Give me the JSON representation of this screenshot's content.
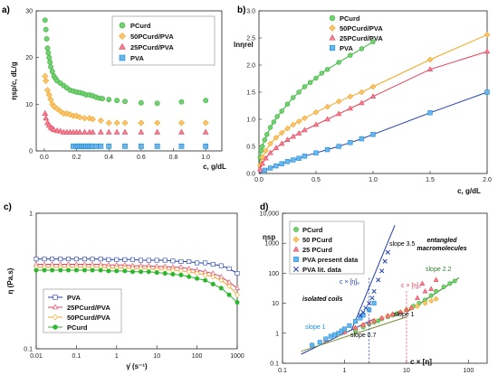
{
  "panels": {
    "a": {
      "label": "a)"
    },
    "b": {
      "label": "b)"
    },
    "c": {
      "label": "c)"
    },
    "d": {
      "label": "d)"
    }
  },
  "colors": {
    "PCurd": "#2db52d",
    "50PCurd/PVA": "#f5a623",
    "25PCurd/PVA": "#e8415a",
    "PVA": "#1a8fe0",
    "PVA_line": "#1f3fb0"
  },
  "chart_data": [
    {
      "id": "a",
      "type": "scatter",
      "xlabel": "c, g/dL",
      "ylabel": "ηsp/c, dL/g",
      "xlim": [
        -0.05,
        1.1
      ],
      "ylim": [
        0,
        30
      ],
      "xticks": [
        "0.0",
        "0.2",
        "0.4",
        "0.6",
        "0.8",
        "1.0"
      ],
      "yticks": [
        "0",
        "10",
        "20",
        "30"
      ],
      "legend_position": "top-right",
      "series": [
        {
          "name": "PCurd",
          "marker": "circle",
          "x": [
            0.005,
            0.01,
            0.015,
            0.02,
            0.025,
            0.03,
            0.035,
            0.04,
            0.05,
            0.06,
            0.07,
            0.08,
            0.1,
            0.12,
            0.14,
            0.16,
            0.18,
            0.2,
            0.22,
            0.24,
            0.26,
            0.28,
            0.3,
            0.32,
            0.34,
            0.36,
            0.4,
            0.45,
            0.5,
            0.6,
            0.7,
            0.85,
            1.0
          ],
          "y": [
            28,
            26,
            24,
            22,
            21,
            20,
            19,
            18,
            17,
            16,
            15.5,
            15,
            14.5,
            14,
            13.5,
            13,
            12.8,
            12.6,
            12.5,
            12.3,
            12,
            12,
            11.8,
            11.5,
            11.3,
            11.2,
            11,
            10.8,
            10.6,
            10.3,
            10.2,
            10.5,
            10.8
          ]
        },
        {
          "name": "50PCurd/PVA",
          "marker": "diamond",
          "x": [
            0.005,
            0.01,
            0.02,
            0.03,
            0.04,
            0.05,
            0.06,
            0.08,
            0.1,
            0.12,
            0.14,
            0.16,
            0.18,
            0.2,
            0.22,
            0.25,
            0.28,
            0.3,
            0.35,
            0.4,
            0.45,
            0.5,
            0.6,
            0.7,
            0.85,
            1.0
          ],
          "y": [
            16,
            15,
            13,
            12,
            11,
            10,
            9.5,
            9,
            8.5,
            8,
            8,
            7.8,
            7.5,
            7.5,
            7.2,
            7,
            7,
            6.8,
            6.5,
            6,
            6,
            6,
            6,
            6,
            6,
            6
          ]
        },
        {
          "name": "25PCurd/PVA",
          "marker": "triangle",
          "x": [
            0.005,
            0.01,
            0.02,
            0.03,
            0.04,
            0.05,
            0.06,
            0.08,
            0.1,
            0.12,
            0.14,
            0.16,
            0.18,
            0.2,
            0.22,
            0.25,
            0.28,
            0.3,
            0.35,
            0.4,
            0.45,
            0.5,
            0.6,
            0.7,
            0.85,
            1.0
          ],
          "y": [
            8,
            7,
            6,
            5.5,
            5,
            4.8,
            4.5,
            4.3,
            4.2,
            4,
            4,
            4,
            4,
            4,
            4,
            4,
            4,
            4,
            4,
            4,
            4,
            4,
            4,
            4,
            4,
            4
          ]
        },
        {
          "name": "PVA",
          "marker": "square",
          "x": [
            0.18,
            0.2,
            0.21,
            0.22,
            0.23,
            0.24,
            0.25,
            0.26,
            0.27,
            0.28,
            0.29,
            0.3,
            0.32,
            0.35,
            0.4,
            0.5,
            0.6,
            0.7,
            0.85,
            1.0
          ],
          "y": [
            1,
            1,
            1,
            1,
            1,
            1,
            1,
            1,
            1,
            1,
            1,
            1,
            1,
            1,
            1,
            1,
            1,
            1,
            1,
            1
          ]
        }
      ]
    },
    {
      "id": "b",
      "type": "scatter",
      "xlabel": "c, g/dL",
      "ylabel": "lnηrel",
      "xlim": [
        0,
        2.0
      ],
      "ylim": [
        0,
        3.0
      ],
      "xticks": [
        "0.0",
        "0.5",
        "1.0",
        "1.5",
        "2.0"
      ],
      "yticks": [
        "0.0",
        "0.5",
        "1.0",
        "1.5",
        "2.0",
        "2.5",
        "3.0"
      ],
      "legend_position": "top-center",
      "series": [
        {
          "name": "PCurd",
          "marker": "circle",
          "x": [
            0.01,
            0.02,
            0.03,
            0.05,
            0.07,
            0.1,
            0.13,
            0.16,
            0.2,
            0.25,
            0.3,
            0.35,
            0.4,
            0.45,
            0.5,
            0.55,
            0.6,
            0.7,
            0.8,
            0.9,
            1.0
          ],
          "y": [
            0.3,
            0.42,
            0.5,
            0.62,
            0.72,
            0.85,
            0.95,
            1.05,
            1.15,
            1.28,
            1.4,
            1.5,
            1.6,
            1.68,
            1.76,
            1.85,
            1.92,
            2.05,
            2.18,
            2.3,
            2.43
          ]
        },
        {
          "name": "50PCurd/PVA",
          "marker": "diamond",
          "x": [
            0.01,
            0.03,
            0.06,
            0.1,
            0.15,
            0.2,
            0.25,
            0.3,
            0.35,
            0.4,
            0.5,
            0.6,
            0.7,
            0.8,
            0.9,
            1.0,
            1.5,
            2.0
          ],
          "y": [
            0.15,
            0.3,
            0.42,
            0.55,
            0.66,
            0.75,
            0.83,
            0.9,
            0.96,
            1.02,
            1.13,
            1.23,
            1.33,
            1.42,
            1.5,
            1.6,
            2.1,
            2.56
          ]
        },
        {
          "name": "25PCurd/PVA",
          "marker": "triangle",
          "x": [
            0.01,
            0.03,
            0.06,
            0.1,
            0.15,
            0.2,
            0.25,
            0.3,
            0.35,
            0.4,
            0.5,
            0.6,
            0.7,
            0.8,
            0.9,
            1.0,
            1.5,
            2.0
          ],
          "y": [
            0.08,
            0.18,
            0.28,
            0.38,
            0.47,
            0.55,
            0.62,
            0.68,
            0.74,
            0.8,
            0.9,
            1.0,
            1.1,
            1.2,
            1.3,
            1.42,
            1.92,
            2.25
          ]
        },
        {
          "name": "PVA",
          "marker": "square",
          "x": [
            0.05,
            0.1,
            0.15,
            0.2,
            0.25,
            0.3,
            0.35,
            0.4,
            0.5,
            0.6,
            0.7,
            0.8,
            0.9,
            1.0,
            1.5,
            2.0
          ],
          "y": [
            0.06,
            0.1,
            0.14,
            0.18,
            0.22,
            0.25,
            0.28,
            0.32,
            0.38,
            0.44,
            0.5,
            0.57,
            0.64,
            0.72,
            1.12,
            1.5
          ]
        }
      ]
    },
    {
      "id": "c",
      "type": "line",
      "xlabel": "γ̇ (s⁻¹)",
      "ylabel": "η (Pa.s)",
      "xscale": "log",
      "yscale": "log",
      "xlim": [
        0.01,
        1000
      ],
      "ylim": [
        0.1,
        1
      ],
      "xticks": [
        "0.01",
        "0.1",
        "1",
        "10",
        "100",
        "1000"
      ],
      "yticks": [
        "0.1",
        "1"
      ],
      "legend_position": "bottom-left",
      "series": [
        {
          "name": "PVA",
          "marker": "square",
          "x": [
            0.01,
            0.016,
            0.025,
            0.04,
            0.063,
            0.1,
            0.16,
            0.25,
            0.4,
            0.63,
            1,
            1.6,
            2.5,
            4,
            6.3,
            10,
            16,
            25,
            40,
            63,
            100,
            160,
            250,
            400,
            630,
            1000
          ],
          "y": [
            0.46,
            0.46,
            0.46,
            0.46,
            0.46,
            0.46,
            0.46,
            0.46,
            0.46,
            0.455,
            0.455,
            0.455,
            0.455,
            0.45,
            0.45,
            0.45,
            0.45,
            0.445,
            0.44,
            0.44,
            0.43,
            0.43,
            0.42,
            0.41,
            0.39,
            0.36
          ]
        },
        {
          "name": "25PCurd/PVA",
          "marker": "triangle",
          "x": [
            0.01,
            0.016,
            0.025,
            0.04,
            0.063,
            0.1,
            0.16,
            0.25,
            0.4,
            0.63,
            1,
            1.6,
            2.5,
            4,
            6.3,
            10,
            16,
            25,
            40,
            63,
            100,
            160,
            250,
            400,
            630,
            1000
          ],
          "y": [
            0.42,
            0.42,
            0.42,
            0.42,
            0.42,
            0.42,
            0.42,
            0.42,
            0.42,
            0.415,
            0.415,
            0.415,
            0.41,
            0.41,
            0.41,
            0.405,
            0.405,
            0.4,
            0.4,
            0.39,
            0.38,
            0.37,
            0.36,
            0.34,
            0.31,
            0.28
          ]
        },
        {
          "name": "50PCurd/PVA",
          "marker": "diamond",
          "x": [
            0.01,
            0.016,
            0.025,
            0.04,
            0.063,
            0.1,
            0.16,
            0.25,
            0.4,
            0.63,
            1,
            1.6,
            2.5,
            4,
            6.3,
            10,
            16,
            25,
            40,
            63,
            100,
            160,
            250,
            400,
            630,
            1000
          ],
          "y": [
            0.4,
            0.4,
            0.4,
            0.4,
            0.4,
            0.4,
            0.4,
            0.4,
            0.4,
            0.395,
            0.395,
            0.395,
            0.39,
            0.39,
            0.39,
            0.385,
            0.385,
            0.38,
            0.375,
            0.37,
            0.36,
            0.35,
            0.34,
            0.32,
            0.29,
            0.25
          ]
        },
        {
          "name": "PCurd",
          "marker": "circle",
          "x": [
            0.01,
            0.016,
            0.025,
            0.04,
            0.063,
            0.1,
            0.16,
            0.25,
            0.4,
            0.63,
            1,
            1.6,
            2.5,
            4,
            6.3,
            10,
            16,
            25,
            40,
            63,
            100,
            160,
            250,
            400,
            630,
            1000
          ],
          "y": [
            0.38,
            0.38,
            0.38,
            0.38,
            0.38,
            0.38,
            0.38,
            0.38,
            0.38,
            0.375,
            0.375,
            0.375,
            0.37,
            0.37,
            0.37,
            0.365,
            0.36,
            0.355,
            0.35,
            0.34,
            0.33,
            0.32,
            0.3,
            0.28,
            0.25,
            0.22
          ]
        }
      ]
    },
    {
      "id": "d",
      "type": "scatter",
      "xlabel": "c × [η]",
      "ylabel": "ηsp",
      "xscale": "log",
      "yscale": "log",
      "xlim": [
        0.1,
        200
      ],
      "ylim": [
        0.1,
        10000
      ],
      "xticks": [
        "0.1",
        "1",
        "10",
        "100"
      ],
      "yticks": [
        "0.1",
        "1",
        "10",
        "100",
        "1000",
        "10,000"
      ],
      "legend_position": "top-left",
      "series": [
        {
          "name": "PCurd",
          "marker": "circle",
          "x": [
            1.5,
            2,
            2.5,
            3,
            3.5,
            4,
            5,
            6,
            7,
            8,
            10,
            13,
            16,
            20,
            25,
            30,
            40,
            50,
            60
          ],
          "y": [
            1.2,
            1.6,
            2,
            2.3,
            2.6,
            3,
            3.5,
            4,
            4.5,
            5,
            6,
            8,
            10,
            13,
            18,
            25,
            35,
            45,
            55
          ]
        },
        {
          "name": "50 PCurd",
          "marker": "diamond",
          "x": [
            0.3,
            0.5,
            0.8,
            1,
            1.5,
            2,
            3,
            4,
            5,
            6,
            8,
            10,
            12,
            15,
            20,
            25,
            30
          ],
          "y": [
            0.4,
            0.6,
            0.9,
            1.1,
            1.5,
            1.9,
            2.6,
            3.2,
            3.8,
            4.3,
            5,
            6,
            7,
            8,
            10,
            12,
            14
          ]
        },
        {
          "name": "25 PCurd",
          "marker": "triangle",
          "x": [
            0.5,
            1,
            1.5,
            2,
            2.5,
            3,
            4,
            5,
            6,
            8,
            10,
            12,
            15,
            18,
            20,
            25,
            30
          ],
          "y": [
            0.6,
            1.1,
            1.5,
            1.9,
            2.3,
            2.6,
            3.2,
            3.8,
            4.3,
            5,
            6,
            7,
            15,
            45,
            25,
            30,
            60
          ]
        },
        {
          "name": "PVA present data",
          "marker": "square",
          "x": [
            0.3,
            0.4,
            0.5,
            0.6,
            0.7,
            0.8,
            0.9,
            1,
            1.2,
            1.5,
            1.8,
            2,
            2.5,
            3
          ],
          "y": [
            0.4,
            0.5,
            0.65,
            0.8,
            0.9,
            1,
            1.2,
            1.4,
            1.8,
            2.5,
            3.2,
            4,
            6,
            10
          ]
        },
        {
          "name": "PVA lit. data",
          "marker": "cross",
          "x": [
            1.8,
            2,
            2.2,
            2.5,
            2.8,
            3,
            3.5,
            4,
            4.5,
            5
          ],
          "y": [
            4,
            5,
            7,
            10,
            15,
            25,
            60,
            120,
            250,
            500
          ]
        }
      ],
      "annotations": [
        "slope 3.5",
        "slope 2.2",
        "slope 1",
        "slope 1",
        "slope 0.7",
        "c × [η]ₑ",
        "c × [η]ₑ",
        "isolated coils",
        "entangled",
        "macromolecules"
      ]
    }
  ]
}
